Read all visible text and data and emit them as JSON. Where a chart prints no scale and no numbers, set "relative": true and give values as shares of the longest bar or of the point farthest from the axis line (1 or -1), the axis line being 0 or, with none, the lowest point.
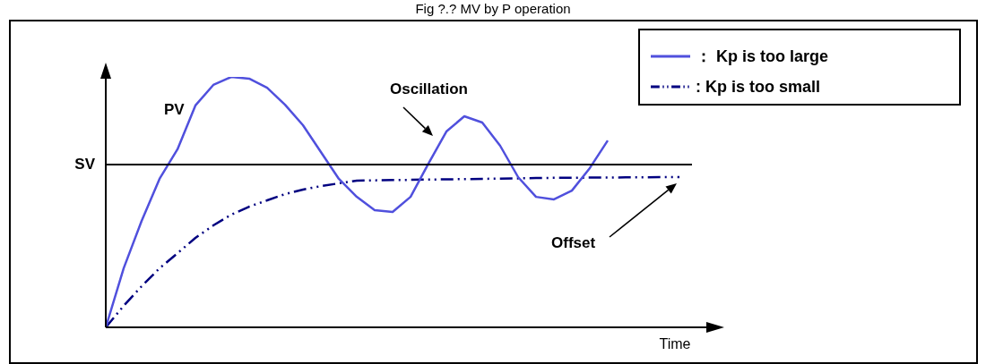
{
  "chart_data": {
    "type": "line",
    "title": "Fig ?.? MV by P operation",
    "xlabel": "Time",
    "relative": true,
    "legend": "top right",
    "grid": false,
    "marker": "none",
    "categories": [
      null,
      null,
      null,
      null,
      null,
      null,
      null,
      null,
      null,
      null,
      null,
      null,
      null,
      null,
      null,
      null,
      null,
      null,
      null,
      null,
      null,
      null,
      null,
      null,
      null,
      null,
      null,
      null,
      null,
      null,
      null,
      null,
      null,
      null,
      null
    ],
    "series": [
      {
        "name": "： Kp is too large",
        "color": "#5050dd",
        "line_style": "solid",
        "values": [
          0,
          0.236,
          0.425,
          0.593,
          0.711,
          0.886,
          0.968,
          1.0,
          0.993,
          0.957,
          0.889,
          0.807,
          0.7,
          0.593,
          0.521,
          0.468,
          0.461,
          0.521,
          0.654,
          0.782,
          0.843,
          0.818,
          0.725,
          0.6,
          0.521,
          0.511,
          0.546,
          0.636,
          0.746,
          null,
          null,
          null,
          null,
          null,
          null
        ]
      },
      {
        "name": ": Kp is too small",
        "color": "#000080",
        "line_style": "dashed",
        "values": [
          0,
          0.086,
          0.164,
          0.236,
          0.296,
          0.357,
          0.407,
          0.45,
          0.482,
          0.507,
          0.532,
          0.55,
          0.564,
          0.575,
          0.586,
          0.587,
          0.588,
          0.589,
          0.59,
          0.591,
          0.592,
          0.593,
          0.594,
          0.595,
          0.596,
          0.597,
          0.597,
          0.598,
          0.598,
          0.599,
          0.599,
          0.6,
          0.6,
          null,
          null
        ]
      }
    ],
    "ref_lines": [
      {
        "axis": "y",
        "value": 0.65,
        "label": "SV",
        "color": "#000000"
      }
    ],
    "annotations": [
      "PV",
      "Oscillation",
      "Offset"
    ]
  }
}
